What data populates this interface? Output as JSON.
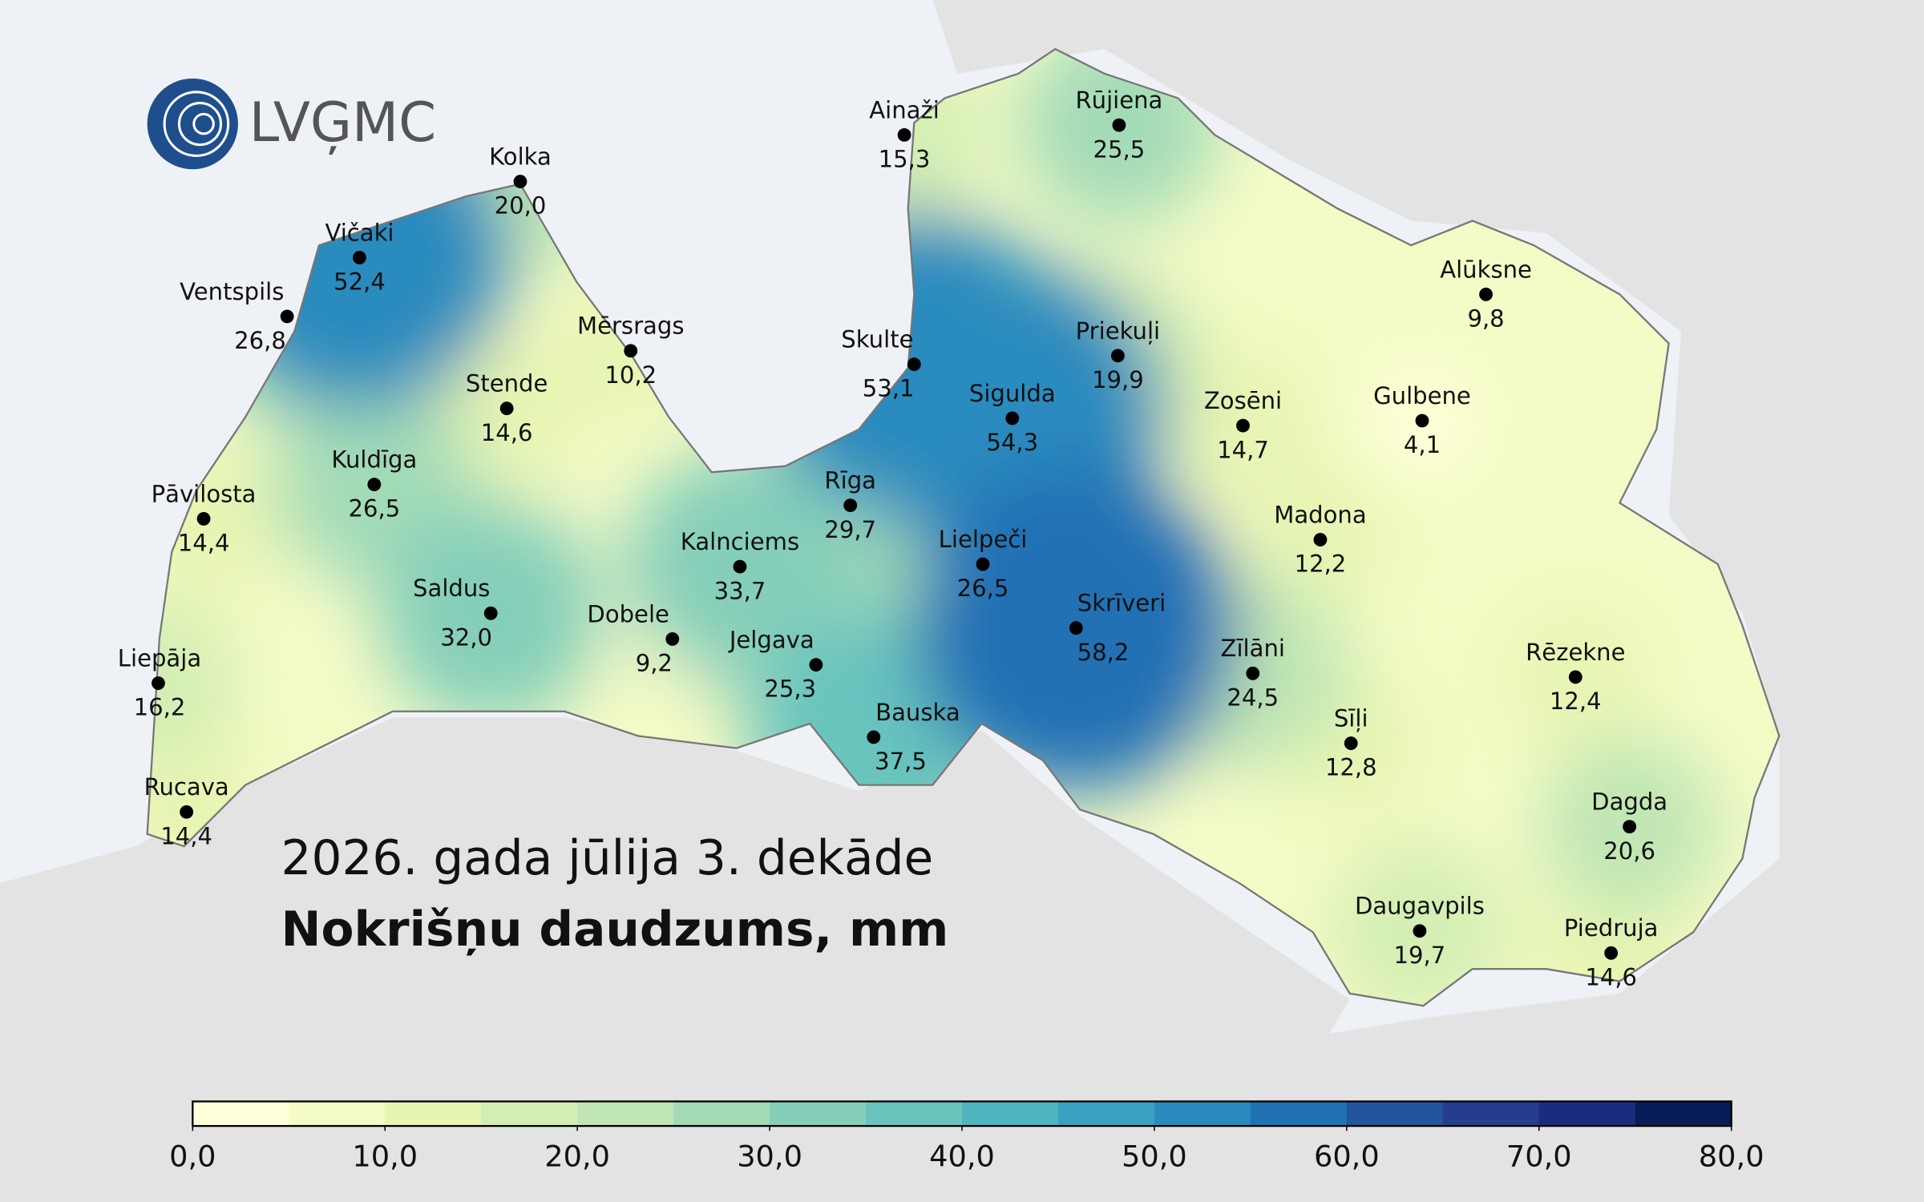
{
  "logo": "LVĢMC",
  "title": "2026. gada jūlija 3. dekāde",
  "subtitle": "Nokrišņu daudzums, mm",
  "stations": {
    "names": [
      "Ainaži",
      "Rūjiena",
      "Kolka",
      "Vičaki",
      "Ventspils",
      "Mērsrags",
      "Skulte",
      "Sigulda",
      "Priekuļi",
      "Alūksne",
      "Zosēni",
      "Gulbene",
      "Stende",
      "Kuldīga",
      "Pāvilosta",
      "Rīga",
      "Kalnciems",
      "Lielpeči",
      "Madona",
      "Saldus",
      "Dobele",
      "Skrīveri",
      "Jelgava",
      "Liepāja",
      "Zīlāni",
      "Rēzekne",
      "Sīļi",
      "Bauska",
      "Rucava",
      "Dagda",
      "Daugavpils",
      "Piedruja"
    ],
    "values": [
      15.3,
      25.5,
      20.0,
      52.4,
      26.8,
      10.2,
      53.1,
      54.3,
      19.9,
      9.8,
      14.7,
      4.1,
      14.6,
      26.5,
      14.4,
      29.7,
      33.7,
      26.5,
      12.2,
      32.0,
      9.2,
      58.2,
      25.3,
      16.2,
      24.5,
      12.4,
      12.8,
      37.5,
      14.4,
      20.6,
      19.7,
      14.6
    ],
    "value_labels": [
      "15,3",
      "25,5",
      "20,0",
      "52,4",
      "26,8",
      "10,2",
      "53,1",
      "54,3",
      "19,9",
      "9,8",
      "14,7",
      "4,1",
      "14,6",
      "26,5",
      "14,4",
      "29,7",
      "33,7",
      "26,5",
      "12,2",
      "32,0",
      "9,2",
      "58,2",
      "25,3",
      "16,2",
      "24,5",
      "12,4",
      "12,8",
      "37,5",
      "14,4",
      "20,6",
      "19,7",
      "14,6"
    ]
  },
  "colorbar": {
    "lim": [
      0,
      80
    ],
    "colors": [
      "#ffffd9",
      "#f4fbc6",
      "#e7f5b3",
      "#d3eeb3",
      "#bfe6b4",
      "#a3dbb7",
      "#85cfba",
      "#69c4be",
      "#4fb5c1",
      "#3aa2c1",
      "#2b8bbe",
      "#2171b5",
      "#23549f",
      "#243d8f",
      "#1b2c80",
      "#081d58"
    ],
    "ticks": [
      {
        "value": 0,
        "label": "0,0"
      },
      {
        "value": 10,
        "label": "10,0"
      },
      {
        "value": 20,
        "label": "20,0"
      },
      {
        "value": 30,
        "label": "30,0"
      },
      {
        "value": 40,
        "label": "40,0"
      },
      {
        "value": 50,
        "label": "50,0"
      },
      {
        "value": 60,
        "label": "60,0"
      },
      {
        "value": 70,
        "label": "70,0"
      },
      {
        "value": 80,
        "label": "80,0"
      }
    ]
  }
}
